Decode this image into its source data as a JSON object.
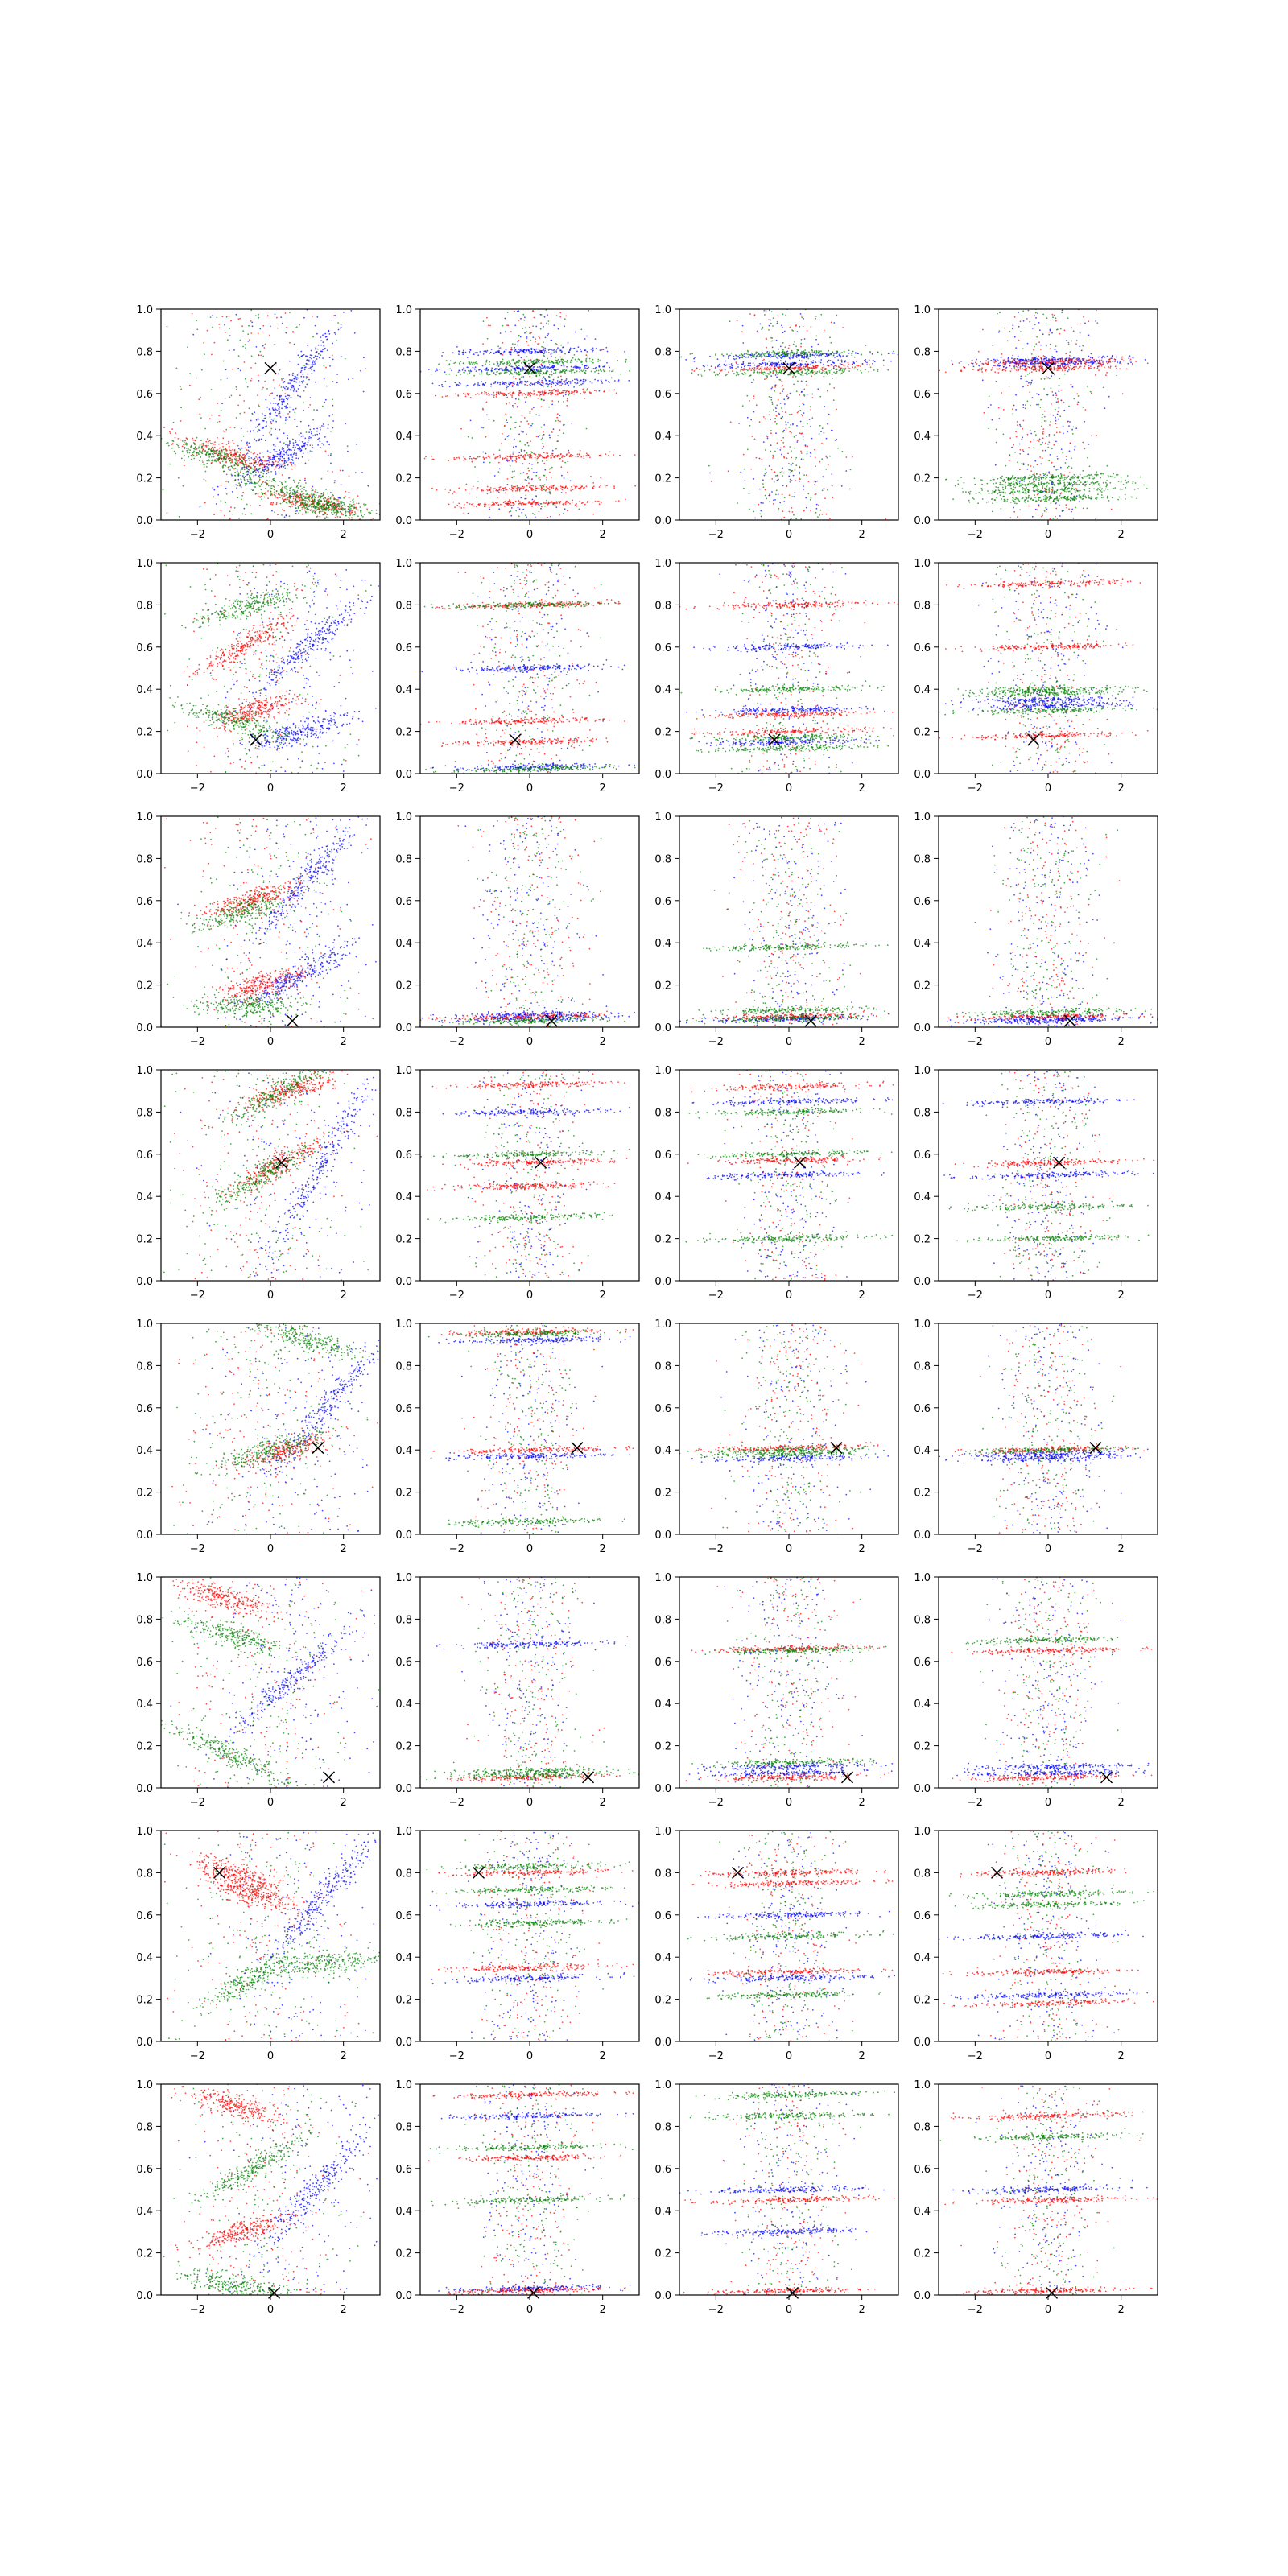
{
  "chart_data": {
    "type": "scatter",
    "rows": 8,
    "cols": 4,
    "xlim": [
      -3,
      3
    ],
    "ylim": [
      0,
      1
    ],
    "x_ticks": [
      -2,
      0,
      2
    ],
    "y_ticks": [
      0.0,
      0.2,
      0.4,
      0.6,
      0.8,
      1.0
    ],
    "x_tick_labels": [
      "−2",
      "0",
      "2"
    ],
    "y_tick_labels": [
      "0.0",
      "0.2",
      "0.4",
      "0.6",
      "0.8",
      "1.0"
    ],
    "grid": false,
    "legend": "none",
    "series_colors": {
      "blue": "#0000ff",
      "red": "#ff0000",
      "green": "#008000"
    },
    "marker_color": "#000000",
    "rows_data": [
      {
        "marker": {
          "x": 0.0,
          "y": 0.72
        },
        "col0": {
          "green": [
            {
              "x": -1.5,
              "y": 0.3,
              "span": 1.3,
              "slope": -0.05
            },
            {
              "x": 0.6,
              "y": 0.13,
              "span": 1.6,
              "slope": -0.05
            },
            {
              "x": 1.6,
              "y": 0.06,
              "span": 1.2,
              "slope": -0.02
            }
          ],
          "red": [
            {
              "x": -1.0,
              "y": 0.3,
              "span": 1.2,
              "slope": -0.05
            },
            {
              "x": 1.2,
              "y": 0.08,
              "span": 1.4,
              "slope": -0.03
            }
          ],
          "blue": [
            {
              "x": 0.5,
              "y": 0.6,
              "span": 1.5,
              "slope": 0.25
            },
            {
              "x": 0.3,
              "y": 0.3,
              "span": 1.2,
              "slope": 0.1
            }
          ]
        },
        "h": [
          {
            "green": [
              0.7,
              0.75
            ],
            "blue": [
              0.65,
              0.72,
              0.8
            ],
            "red": [
              0.6,
              0.3,
              0.08,
              0.15
            ]
          },
          {
            "blue": [
              0.78,
              0.74
            ],
            "red": [
              0.72
            ],
            "green": [
              0.79,
              0.7
            ]
          },
          {
            "blue": [
              0.74,
              0.76
            ],
            "red": [
              0.72,
              0.75
            ],
            "green": [
              0.2,
              0.17,
              0.14,
              0.1
            ]
          }
        ]
      },
      {
        "marker": {
          "x": -0.4,
          "y": 0.16
        },
        "col0": {
          "green": [
            {
              "x": -1.0,
              "y": 0.25,
              "span": 1.4,
              "slope": -0.05
            },
            {
              "x": -0.5,
              "y": 0.8,
              "span": 1.4,
              "slope": 0.05
            }
          ],
          "red": [
            {
              "x": -0.8,
              "y": 0.6,
              "span": 1.2,
              "slope": 0.1
            },
            {
              "x": -0.4,
              "y": 0.3,
              "span": 1.2,
              "slope": 0.05
            }
          ],
          "blue": [
            {
              "x": 1.0,
              "y": 0.6,
              "span": 1.6,
              "slope": 0.15
            },
            {
              "x": 0.8,
              "y": 0.2,
              "span": 1.4,
              "slope": 0.05
            }
          ]
        },
        "h": [
          {
            "green": [
              0.02,
              0.8
            ],
            "blue": [
              0.5,
              0.03
            ],
            "red": [
              0.8,
              0.25,
              0.15
            ]
          },
          {
            "green": [
              0.4,
              0.17,
              0.12
            ],
            "blue": [
              0.3,
              0.15,
              0.6
            ],
            "red": [
              0.8,
              0.28,
              0.2
            ]
          },
          {
            "green": [
              0.4,
              0.38,
              0.3
            ],
            "blue": [
              0.32,
              0.35
            ],
            "red": [
              0.18,
              0.9,
              0.6
            ]
          }
        ]
      },
      {
        "marker": {
          "x": 0.6,
          "y": 0.03
        },
        "col0": {
          "green": [
            {
              "x": -0.8,
              "y": 0.55,
              "span": 1.3,
              "slope": 0.05
            },
            {
              "x": -0.6,
              "y": 0.1,
              "span": 1.3,
              "slope": 0.0
            }
          ],
          "red": [
            {
              "x": -0.6,
              "y": 0.6,
              "span": 1.2,
              "slope": 0.05
            },
            {
              "x": -0.3,
              "y": 0.2,
              "span": 1.2,
              "slope": 0.05
            }
          ],
          "blue": [
            {
              "x": 1.0,
              "y": 0.7,
              "span": 1.6,
              "slope": 0.2
            },
            {
              "x": 0.8,
              "y": 0.25,
              "span": 1.4,
              "slope": 0.1
            }
          ]
        },
        "h": [
          {
            "green": [
              0.03
            ],
            "blue": [
              0.06,
              0.04
            ],
            "red": [
              0.05
            ]
          },
          {
            "green": [
              0.04,
              0.08,
              0.38
            ],
            "blue": [
              0.04
            ],
            "red": [
              0.05
            ]
          },
          {
            "green": [
              0.07
            ],
            "blue": [
              0.04,
              0.03
            ],
            "red": [
              0.05
            ]
          }
        ]
      },
      {
        "marker": {
          "x": 0.3,
          "y": 0.56
        },
        "col0": {
          "green": [
            {
              "x": -0.2,
              "y": 0.5,
              "span": 1.4,
              "slope": 0.1
            },
            {
              "x": 0.3,
              "y": 0.9,
              "span": 1.4,
              "slope": 0.1
            }
          ],
          "red": [
            {
              "x": 0.2,
              "y": 0.55,
              "span": 1.3,
              "slope": 0.1
            },
            {
              "x": 0.5,
              "y": 0.9,
              "span": 1.2,
              "slope": 0.05
            }
          ],
          "blue": [
            {
              "x": 1.4,
              "y": 0.55,
              "span": 1.6,
              "slope": 0.3
            }
          ]
        },
        "h": [
          {
            "red": [
              0.93,
              0.56,
              0.45
            ],
            "green": [
              0.6,
              0.3
            ],
            "blue": [
              0.8
            ]
          },
          {
            "red": [
              0.57,
              0.92
            ],
            "green": [
              0.8,
              0.6,
              0.2
            ],
            "blue": [
              0.85,
              0.5
            ]
          },
          {
            "red": [
              0.56
            ],
            "green": [
              0.35,
              0.2
            ],
            "blue": [
              0.5,
              0.85
            ]
          }
        ]
      },
      {
        "marker": {
          "x": 1.3,
          "y": 0.41
        },
        "col0": {
          "green": [
            {
              "x": 0.0,
              "y": 0.4,
              "span": 1.4,
              "slope": 0.05
            },
            {
              "x": 1.0,
              "y": 0.92,
              "span": 1.4,
              "slope": -0.05
            }
          ],
          "red": [
            {
              "x": 0.5,
              "y": 0.4,
              "span": 1.2,
              "slope": 0.05
            }
          ],
          "blue": [
            {
              "x": 1.5,
              "y": 0.6,
              "span": 1.6,
              "slope": 0.2
            }
          ]
        },
        "h": [
          {
            "red": [
              0.96,
              0.4
            ],
            "green": [
              0.06,
              0.95
            ],
            "blue": [
              0.37,
              0.92
            ]
          },
          {
            "green": [
              0.4,
              0.38
            ],
            "blue": [
              0.36
            ],
            "red": [
              0.41
            ]
          },
          {
            "blue": [
              0.38,
              0.36
            ],
            "green": [
              0.4
            ],
            "red": [
              0.4
            ]
          }
        ]
      },
      {
        "marker": {
          "x": 1.6,
          "y": 0.05
        },
        "col0": {
          "green": [
            {
              "x": -1.0,
              "y": 0.15,
              "span": 1.6,
              "slope": -0.08
            },
            {
              "x": -1.0,
              "y": 0.72,
              "span": 1.4,
              "slope": -0.05
            }
          ],
          "red": [
            {
              "x": -1.3,
              "y": 0.9,
              "span": 1.2,
              "slope": -0.05
            }
          ],
          "blue": [
            {
              "x": 0.5,
              "y": 0.5,
              "span": 1.6,
              "slope": 0.15
            }
          ]
        },
        "h": [
          {
            "green": [
              0.08,
              0.06
            ],
            "blue": [
              0.68
            ],
            "red": [
              0.05
            ]
          },
          {
            "green": [
              0.65,
              0.12
            ],
            "blue": [
              0.07,
              0.1
            ],
            "red": [
              0.05,
              0.66
            ]
          },
          {
            "blue": [
              0.1,
              0.07
            ],
            "green": [
              0.7
            ],
            "red": [
              0.05,
              0.65
            ]
          }
        ]
      },
      {
        "marker": {
          "x": -1.4,
          "y": 0.8
        },
        "col0": {
          "green": [
            {
              "x": 1.5,
              "y": 0.37,
              "span": 1.4,
              "slope": 0.02
            },
            {
              "x": -0.5,
              "y": 0.3,
              "span": 1.4,
              "slope": 0.1
            }
          ],
          "red": [
            {
              "x": -1.0,
              "y": 0.8,
              "span": 1.2,
              "slope": -0.05
            },
            {
              "x": -0.5,
              "y": 0.7,
              "span": 1.2,
              "slope": -0.05
            }
          ],
          "blue": [
            {
              "x": 1.5,
              "y": 0.7,
              "span": 1.6,
              "slope": 0.2
            }
          ]
        },
        "h": [
          {
            "red": [
              0.8,
              0.35
            ],
            "green": [
              0.83,
              0.72,
              0.56
            ],
            "blue": [
              0.3,
              0.65
            ]
          },
          {
            "red": [
              0.8,
              0.75,
              0.33
            ],
            "green": [
              0.22,
              0.5
            ],
            "blue": [
              0.3,
              0.6
            ]
          },
          {
            "red": [
              0.8,
              0.18,
              0.33
            ],
            "green": [
              0.65,
              0.7
            ],
            "blue": [
              0.22,
              0.5
            ]
          }
        ]
      },
      {
        "marker": {
          "x": 0.1,
          "y": 0.01
        },
        "col0": {
          "green": [
            {
              "x": -1.0,
              "y": 0.05,
              "span": 1.6,
              "slope": -0.03
            },
            {
              "x": -0.5,
              "y": 0.6,
              "span": 1.4,
              "slope": 0.1
            }
          ],
          "red": [
            {
              "x": -1.0,
              "y": 0.9,
              "span": 1.3,
              "slope": -0.05
            },
            {
              "x": -0.8,
              "y": 0.3,
              "span": 1.2,
              "slope": 0.05
            }
          ],
          "blue": [
            {
              "x": 1.2,
              "y": 0.5,
              "span": 1.6,
              "slope": 0.2
            }
          ]
        },
        "h": [
          {
            "green": [
              0.45,
              0.7
            ],
            "red": [
              0.95,
              0.02,
              0.65
            ],
            "blue": [
              0.03,
              0.85
            ]
          },
          {
            "red": [
              0.45,
              0.02
            ],
            "green": [
              0.95,
              0.85
            ],
            "blue": [
              0.5,
              0.3
            ]
          },
          {
            "red": [
              0.45,
              0.02,
              0.85
            ],
            "green": [
              0.75
            ],
            "blue": [
              0.5
            ]
          }
        ]
      }
    ]
  }
}
